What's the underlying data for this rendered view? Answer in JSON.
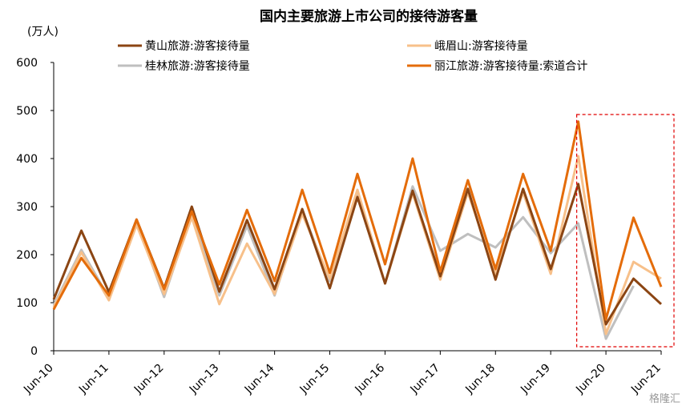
{
  "chart_data": {
    "type": "line",
    "title": "国内主要旅游上市公司的接待游客量",
    "unit_label": "(万人)",
    "ylim": [
      0,
      600
    ],
    "yticks": [
      "0",
      "100",
      "200",
      "300",
      "400",
      "500",
      "600"
    ],
    "xtick_labels": [
      "Jun-10",
      "Jun-11",
      "Jun-12",
      "Jun-13",
      "Jun-14",
      "Jun-15",
      "Jun-16",
      "Jun-17",
      "Jun-18",
      "Jun-19",
      "Jun-20",
      "Jun-21"
    ],
    "x": [
      "Jun-10",
      "Dec-10",
      "Jun-11",
      "Dec-11",
      "Jun-12",
      "Dec-12",
      "Jun-13",
      "Dec-13",
      "Jun-14",
      "Dec-14",
      "Jun-15",
      "Dec-15",
      "Jun-16",
      "Dec-16",
      "Jun-17",
      "Dec-17",
      "Jun-18",
      "Dec-18",
      "Jun-19",
      "Dec-19",
      "Jun-20",
      "Dec-20",
      "Jun-21"
    ],
    "grid": false,
    "legend_position": "top",
    "series": [
      {
        "name": "黄山旅游:游客接待量",
        "color": "#8B4513",
        "values": [
          107,
          250,
          122,
          273,
          130,
          300,
          123,
          272,
          128,
          295,
          130,
          320,
          140,
          333,
          155,
          337,
          148,
          337,
          170,
          347,
          55,
          150,
          97
        ]
      },
      {
        "name": "峨眉山:游客接待量",
        "color": "#F7C08A",
        "values": [
          90,
          205,
          105,
          262,
          118,
          278,
          97,
          223,
          118,
          285,
          150,
          335,
          140,
          328,
          148,
          330,
          160,
          330,
          160,
          405,
          35,
          185,
          150
        ]
      },
      {
        "name": "桂林旅游:游客接待量",
        "color": "#BFBFBF",
        "values": [
          95,
          210,
          110,
          268,
          112,
          285,
          115,
          260,
          115,
          292,
          145,
          330,
          140,
          342,
          208,
          243,
          215,
          278,
          203,
          265,
          25,
          135,
          null
        ]
      },
      {
        "name": "丽江旅游:游客接待量:索道合计",
        "color": "#E46C0A",
        "values": [
          86,
          193,
          115,
          273,
          128,
          290,
          138,
          293,
          145,
          335,
          162,
          368,
          180,
          400,
          165,
          355,
          170,
          368,
          208,
          477,
          65,
          277,
          133
        ]
      }
    ],
    "highlight": {
      "from": "Dec-19",
      "to": "Jun-21",
      "style": "red-dashed-box"
    }
  },
  "watermark": "格隆汇"
}
